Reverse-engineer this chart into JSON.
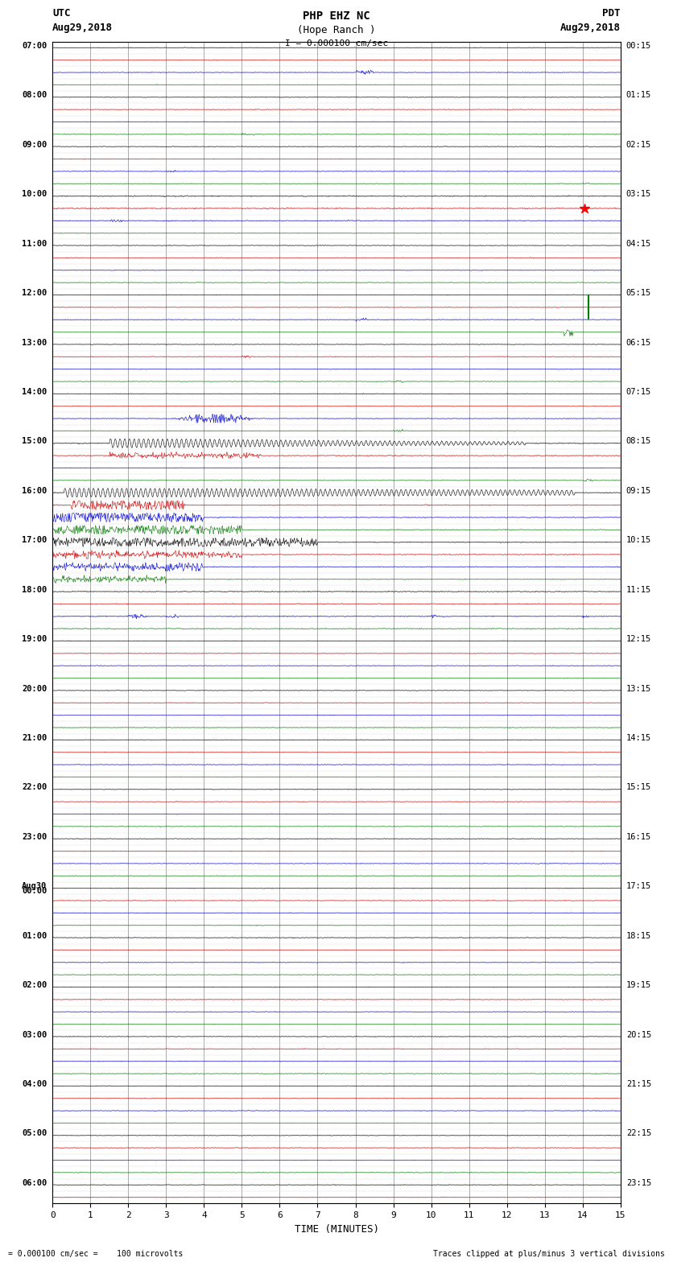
{
  "title_line1": "PHP EHZ NC",
  "title_line2": "(Hope Ranch )",
  "title_line3": "I = 0.000100 cm/sec",
  "left_label_line1": "UTC",
  "left_label_line2": "Aug29,2018",
  "right_label_line1": "PDT",
  "right_label_line2": "Aug29,2018",
  "bottom_label": "TIME (MINUTES)",
  "footer_left": "= 0.000100 cm/sec =    100 microvolts",
  "footer_right": "Traces clipped at plus/minus 3 vertical divisions",
  "colors": {
    "black": "#000000",
    "red": "#cc0000",
    "blue": "#0000cc",
    "green": "#007700",
    "background": "#ffffff",
    "grid": "#888888"
  },
  "xmin": 0,
  "xmax": 15,
  "figsize": [
    8.5,
    16.13
  ],
  "dpi": 100
}
